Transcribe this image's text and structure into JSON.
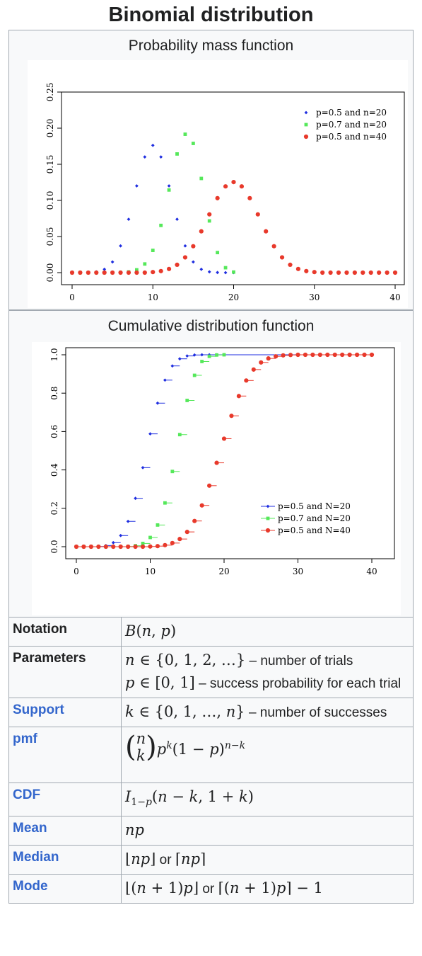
{
  "title": "Binomial distribution",
  "pmf": {
    "caption": "Probability mass function",
    "chart_data": {
      "type": "scatter",
      "xlim": [
        0,
        40
      ],
      "ylim": [
        0,
        0.25
      ],
      "xticks": [
        "0",
        "10",
        "20",
        "30",
        "40"
      ],
      "yticks": [
        "0.00",
        "0.05",
        "0.10",
        "0.15",
        "0.20",
        "0.25"
      ],
      "legend_position": "top-right",
      "series": [
        {
          "name": "p=0.5 and n=20",
          "color": "#1f2ee0",
          "marker": "diamond",
          "x": [
            0,
            1,
            2,
            3,
            4,
            5,
            6,
            7,
            8,
            9,
            10,
            11,
            12,
            13,
            14,
            15,
            16,
            17,
            18,
            19,
            20
          ],
          "y": [
            0,
            0,
            0.0002,
            0.0011,
            0.0046,
            0.0148,
            0.037,
            0.0739,
            0.1201,
            0.1602,
            0.1762,
            0.1602,
            0.1201,
            0.0739,
            0.037,
            0.0148,
            0.0046,
            0.0011,
            0.0002,
            0,
            0
          ]
        },
        {
          "name": "p=0.7 and n=20",
          "color": "#55e85a",
          "marker": "square",
          "x": [
            0,
            1,
            2,
            3,
            4,
            5,
            6,
            7,
            8,
            9,
            10,
            11,
            12,
            13,
            14,
            15,
            16,
            17,
            18,
            19,
            20
          ],
          "y": [
            0,
            0,
            0,
            0,
            0,
            0,
            0.0002,
            0.001,
            0.0039,
            0.012,
            0.0308,
            0.0654,
            0.1144,
            0.1643,
            0.1916,
            0.1789,
            0.1304,
            0.0716,
            0.0278,
            0.0068,
            0.0008
          ]
        },
        {
          "name": "p=0.5 and n=40",
          "color": "#e8392b",
          "marker": "circle",
          "x": [
            0,
            1,
            2,
            3,
            4,
            5,
            6,
            7,
            8,
            9,
            10,
            11,
            12,
            13,
            14,
            15,
            16,
            17,
            18,
            19,
            20,
            21,
            22,
            23,
            24,
            25,
            26,
            27,
            28,
            29,
            30,
            31,
            32,
            33,
            34,
            35,
            36,
            37,
            38,
            39,
            40
          ],
          "y": [
            0,
            0,
            0,
            0,
            0,
            0,
            0,
            0,
            0,
            0,
            0.0008,
            0.0021,
            0.0051,
            0.0109,
            0.0211,
            0.0366,
            0.0572,
            0.0807,
            0.1031,
            0.1194,
            0.1254,
            0.1194,
            0.1031,
            0.0807,
            0.0572,
            0.0366,
            0.0211,
            0.0109,
            0.0051,
            0.0021,
            0.0008,
            0,
            0,
            0,
            0,
            0,
            0,
            0,
            0,
            0,
            0
          ]
        }
      ]
    }
  },
  "cdf": {
    "caption": "Cumulative distribution function",
    "chart_data": {
      "type": "line",
      "xlim": [
        0,
        40
      ],
      "ylim": [
        0,
        1
      ],
      "xticks": [
        "0",
        "10",
        "20",
        "30",
        "40"
      ],
      "yticks": [
        "0.0",
        "0.2",
        "0.4",
        "0.6",
        "0.8",
        "1.0"
      ],
      "legend_position": "bottom-right",
      "series": [
        {
          "name": "p=0.5 and N=20",
          "color": "#1f2ee0",
          "marker": "diamond",
          "x": [
            0,
            1,
            2,
            3,
            4,
            5,
            6,
            7,
            8,
            9,
            10,
            11,
            12,
            13,
            14,
            15,
            16,
            17,
            18,
            19,
            20
          ],
          "y": [
            0,
            0,
            0,
            0.001,
            0.006,
            0.021,
            0.058,
            0.132,
            0.252,
            0.412,
            0.588,
            0.748,
            0.868,
            0.942,
            0.979,
            0.994,
            0.999,
            1,
            1,
            1,
            1
          ]
        },
        {
          "name": "p=0.7 and N=20",
          "color": "#55e85a",
          "marker": "square",
          "x": [
            0,
            1,
            2,
            3,
            4,
            5,
            6,
            7,
            8,
            9,
            10,
            11,
            12,
            13,
            14,
            15,
            16,
            17,
            18,
            19,
            20
          ],
          "y": [
            0,
            0,
            0,
            0,
            0,
            0,
            0,
            0.001,
            0.005,
            0.017,
            0.048,
            0.113,
            0.228,
            0.392,
            0.584,
            0.762,
            0.893,
            0.965,
            0.992,
            0.999,
            1
          ]
        },
        {
          "name": "p=0.5 and N=40",
          "color": "#e8392b",
          "marker": "circle",
          "x": [
            0,
            1,
            2,
            3,
            4,
            5,
            6,
            7,
            8,
            9,
            10,
            11,
            12,
            13,
            14,
            15,
            16,
            17,
            18,
            19,
            20,
            21,
            22,
            23,
            24,
            25,
            26,
            27,
            28,
            29,
            30,
            31,
            32,
            33,
            34,
            35,
            36,
            37,
            38,
            39,
            40
          ],
          "y": [
            0,
            0,
            0,
            0,
            0,
            0,
            0,
            0,
            0,
            0,
            0.001,
            0.003,
            0.008,
            0.019,
            0.04,
            0.077,
            0.134,
            0.215,
            0.318,
            0.437,
            0.563,
            0.682,
            0.785,
            0.866,
            0.923,
            0.96,
            0.981,
            0.992,
            0.997,
            0.999,
            1,
            1,
            1,
            1,
            1,
            1,
            1,
            1,
            1,
            1,
            1
          ]
        }
      ]
    }
  },
  "properties": {
    "notation": {
      "label": "Notation",
      "value": "B(n, p)"
    },
    "parameters": {
      "label": "Parameters",
      "line1_text": " – number of trials",
      "line2_text": " – success probability for each trial"
    },
    "support": {
      "label": "Support",
      "text": " – number of successes"
    },
    "pmf": {
      "label": "pmf"
    },
    "cdf": {
      "label": "CDF"
    },
    "mean": {
      "label": "Mean",
      "value": "np"
    },
    "median": {
      "label": "Median",
      "or": "or"
    },
    "mode": {
      "label": "Mode",
      "or": "or"
    }
  }
}
